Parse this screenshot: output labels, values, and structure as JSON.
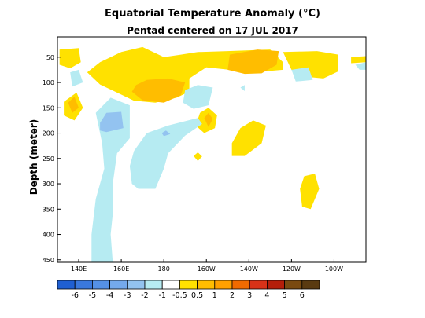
{
  "chart_data": {
    "type": "heatmap",
    "title": "Equatorial Temperature Anomaly (°C)",
    "subtitle": "Pentad centered on 17 JUL 2017",
    "ylabel": "Depth (meter)",
    "xlabel": "",
    "x_ticks": [
      {
        "lon": 140,
        "label": "140E"
      },
      {
        "lon": 160,
        "label": "160E"
      },
      {
        "lon": 180,
        "label": "180"
      },
      {
        "lon": 200,
        "label": "160W"
      },
      {
        "lon": 220,
        "label": "140W"
      },
      {
        "lon": 240,
        "label": "120W"
      },
      {
        "lon": 260,
        "label": "100W"
      }
    ],
    "y_ticks": [
      50,
      100,
      150,
      200,
      250,
      300,
      350,
      400,
      450
    ],
    "xlim": [
      130,
      275
    ],
    "ylim": [
      455,
      10
    ],
    "colorbar": {
      "boundaries": [
        "-6",
        "-5",
        "-4",
        "-3",
        "-2",
        "-1",
        "-0.5",
        "0.5",
        "1",
        "2",
        "3",
        "4",
        "5",
        "6"
      ],
      "colors": [
        "#1f5fd2",
        "#3a78dd",
        "#5591e6",
        "#74a9ec",
        "#93c3f0",
        "#b6ebf2",
        "#ffffff",
        "#ffe100",
        "#ffbd00",
        "#ffa000",
        "#f06a00",
        "#d83218",
        "#b41e0a",
        "#7a4a10",
        "#5a3a10"
      ]
    },
    "regions": [
      {
        "name": "warm-surface-belt",
        "level": 1,
        "points": [
          [
            150,
            60
          ],
          [
            160,
            40
          ],
          [
            170,
            30
          ],
          [
            180,
            50
          ],
          [
            188,
            45
          ],
          [
            196,
            40
          ],
          [
            210,
            38
          ],
          [
            230,
            35
          ],
          [
            236,
            60
          ],
          [
            236,
            75
          ],
          [
            222,
            80
          ],
          [
            200,
            70
          ],
          [
            192,
            92
          ],
          [
            192,
            118
          ],
          [
            186,
            130
          ],
          [
            176,
            140
          ],
          [
            166,
            136
          ],
          [
            158,
            120
          ],
          [
            150,
            104
          ],
          [
            144,
            80
          ]
        ]
      },
      {
        "name": "warm-far-west",
        "level": 1,
        "points": [
          [
            131,
            35
          ],
          [
            140,
            32
          ],
          [
            141,
            60
          ],
          [
            136,
            72
          ],
          [
            131,
            65
          ]
        ]
      },
      {
        "name": "warm-east-surface",
        "level": 1,
        "points": [
          [
            236,
            40
          ],
          [
            252,
            38
          ],
          [
            262,
            45
          ],
          [
            262,
            78
          ],
          [
            255,
            92
          ],
          [
            245,
            88
          ],
          [
            240,
            75
          ]
        ]
      },
      {
        "name": "warm-east-edge",
        "level": 1,
        "points": [
          [
            268,
            50
          ],
          [
            275,
            48
          ],
          [
            275,
            60
          ],
          [
            268,
            62
          ]
        ]
      },
      {
        "name": "warm-west-subsurface",
        "level": 1,
        "points": [
          [
            133,
            138
          ],
          [
            139,
            120
          ],
          [
            142,
            150
          ],
          [
            138,
            175
          ],
          [
            133,
            165
          ]
        ]
      },
      {
        "name": "warm-mid-cell",
        "level": 1,
        "points": [
          [
            197,
            160
          ],
          [
            201,
            150
          ],
          [
            205,
            165
          ],
          [
            204,
            190
          ],
          [
            199,
            200
          ],
          [
            195,
            185
          ]
        ]
      },
      {
        "name": "warm-east-cell",
        "level": 1,
        "points": [
          [
            212,
            220
          ],
          [
            216,
            190
          ],
          [
            222,
            175
          ],
          [
            228,
            185
          ],
          [
            226,
            220
          ],
          [
            218,
            245
          ],
          [
            212,
            245
          ]
        ]
      },
      {
        "name": "warm-small-cell",
        "level": 1,
        "points": [
          [
            194,
            245
          ],
          [
            196,
            238
          ],
          [
            198,
            246
          ],
          [
            196,
            255
          ]
        ]
      },
      {
        "name": "warm-deep-cell",
        "level": 1,
        "points": [
          [
            244,
            310
          ],
          [
            246,
            285
          ],
          [
            251,
            280
          ],
          [
            253,
            310
          ],
          [
            249,
            350
          ],
          [
            245,
            345
          ]
        ]
      },
      {
        "name": "orange-core-west",
        "level": 2,
        "points": [
          [
            167,
            105
          ],
          [
            172,
            95
          ],
          [
            182,
            92
          ],
          [
            190,
            100
          ],
          [
            188,
            125
          ],
          [
            180,
            140
          ],
          [
            170,
            135
          ],
          [
            165,
            118
          ]
        ]
      },
      {
        "name": "orange-core-east",
        "level": 2,
        "points": [
          [
            211,
            45
          ],
          [
            224,
            35
          ],
          [
            234,
            38
          ],
          [
            233,
            65
          ],
          [
            226,
            82
          ],
          [
            218,
            83
          ],
          [
            210,
            75
          ]
        ]
      },
      {
        "name": "orange-west-subsurface",
        "level": 2,
        "points": [
          [
            135,
            140
          ],
          [
            138,
            128
          ],
          [
            140,
            150
          ],
          [
            137,
            160
          ]
        ]
      },
      {
        "name": "orange-mid-cell",
        "level": 2,
        "points": [
          [
            199,
            170
          ],
          [
            201,
            160
          ],
          [
            203,
            172
          ],
          [
            201,
            188
          ]
        ]
      },
      {
        "name": "cool-west-surface",
        "level": -1,
        "points": [
          [
            136,
            80
          ],
          [
            140,
            75
          ],
          [
            142,
            100
          ],
          [
            137,
            108
          ]
        ]
      },
      {
        "name": "cool-central",
        "level": -1,
        "points": [
          [
            190,
            115
          ],
          [
            196,
            105
          ],
          [
            203,
            110
          ],
          [
            201,
            145
          ],
          [
            194,
            152
          ],
          [
            189,
            140
          ]
        ]
      },
      {
        "name": "cool-east-surface",
        "level": -1,
        "points": [
          [
            240,
            75
          ],
          [
            248,
            70
          ],
          [
            250,
            95
          ],
          [
            242,
            98
          ]
        ]
      },
      {
        "name": "cool-east-edge",
        "level": -1,
        "points": [
          [
            270,
            65
          ],
          [
            275,
            60
          ],
          [
            275,
            75
          ],
          [
            272,
            75
          ]
        ]
      },
      {
        "name": "cool-west-column",
        "level": -1,
        "points": [
          [
            148,
            160
          ],
          [
            155,
            130
          ],
          [
            164,
            145
          ],
          [
            164,
            210
          ],
          [
            158,
            240
          ],
          [
            156,
            300
          ],
          [
            156,
            360
          ],
          [
            155,
            400
          ],
          [
            156,
            455
          ],
          [
            146,
            455
          ],
          [
            146,
            400
          ],
          [
            148,
            330
          ],
          [
            152,
            270
          ],
          [
            151,
            220
          ]
        ]
      },
      {
        "name": "cool-central-column",
        "level": -1,
        "points": [
          [
            164,
            265
          ],
          [
            166,
            235
          ],
          [
            172,
            200
          ],
          [
            182,
            185
          ],
          [
            196,
            170
          ],
          [
            198,
            182
          ],
          [
            190,
            205
          ],
          [
            182,
            240
          ],
          [
            180,
            270
          ],
          [
            176,
            310
          ],
          [
            168,
            310
          ],
          [
            165,
            300
          ]
        ]
      },
      {
        "name": "cool-east-spot",
        "level": -1,
        "points": [
          [
            216,
            110
          ],
          [
            218,
            105
          ],
          [
            218,
            117
          ]
        ]
      },
      {
        "name": "cool-west-core",
        "level": -2,
        "points": [
          [
            150,
            180
          ],
          [
            153,
            160
          ],
          [
            160,
            158
          ],
          [
            161,
            190
          ],
          [
            153,
            198
          ],
          [
            150,
            195
          ]
        ]
      },
      {
        "name": "cool-central-spot",
        "level": -2,
        "points": [
          [
            179,
            200
          ],
          [
            181,
            195
          ],
          [
            183,
            202
          ],
          [
            180,
            206
          ]
        ]
      }
    ]
  }
}
